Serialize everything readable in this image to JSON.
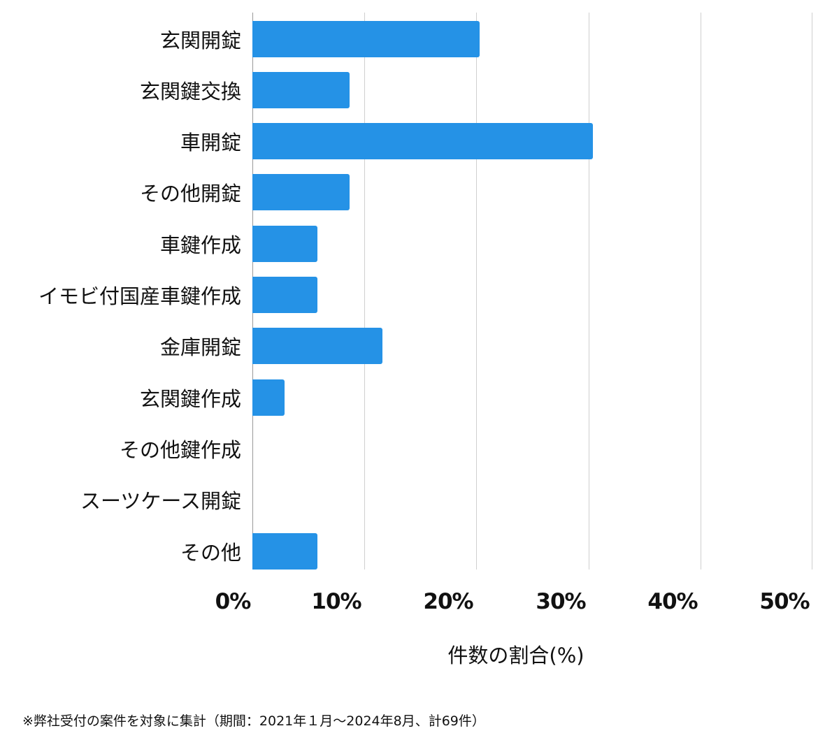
{
  "chart_data": {
    "type": "bar",
    "orientation": "horizontal",
    "categories": [
      "玄関開錠",
      "玄関鍵交換",
      "車開錠",
      "その他開錠",
      "車鍵作成",
      "イモビ付国産車鍵作成",
      "金庫開錠",
      "玄関鍵作成",
      "その他鍵作成",
      "スーツケース開錠",
      "その他"
    ],
    "values": [
      20.3,
      8.7,
      30.4,
      8.7,
      5.8,
      5.8,
      11.6,
      2.9,
      0,
      0,
      5.8
    ],
    "title": "",
    "xlabel": "件数の割合(%)",
    "ylabel": "",
    "xlim": [
      0,
      50
    ],
    "xticks": [
      "0%",
      "10%",
      "20%",
      "30%",
      "40%",
      "50%"
    ],
    "grid": true,
    "bar_color": "#2592e6",
    "note": "※弊社受付の案件を対象に集計（期間：2021年１月～2024年8月、計69件）"
  },
  "labels": {
    "cat0": "玄関開錠",
    "cat1": "玄関鍵交換",
    "cat2": "車開錠",
    "cat3": "その他開錠",
    "cat4": "車鍵作成",
    "cat5": "イモビ付国産車鍵作成",
    "cat6": "金庫開錠",
    "cat7": "玄関鍵作成",
    "cat8": "その他鍵作成",
    "cat9": "スーツケース開錠",
    "cat10": "その他",
    "tick0": "0%",
    "tick1": "10%",
    "tick2": "20%",
    "tick3": "30%",
    "tick4": "40%",
    "tick5": "50%",
    "xlabel": "件数の割合(%)",
    "note": "※弊社受付の案件を対象に集計（期間：2021年１月～2024年8月、計69件）"
  }
}
